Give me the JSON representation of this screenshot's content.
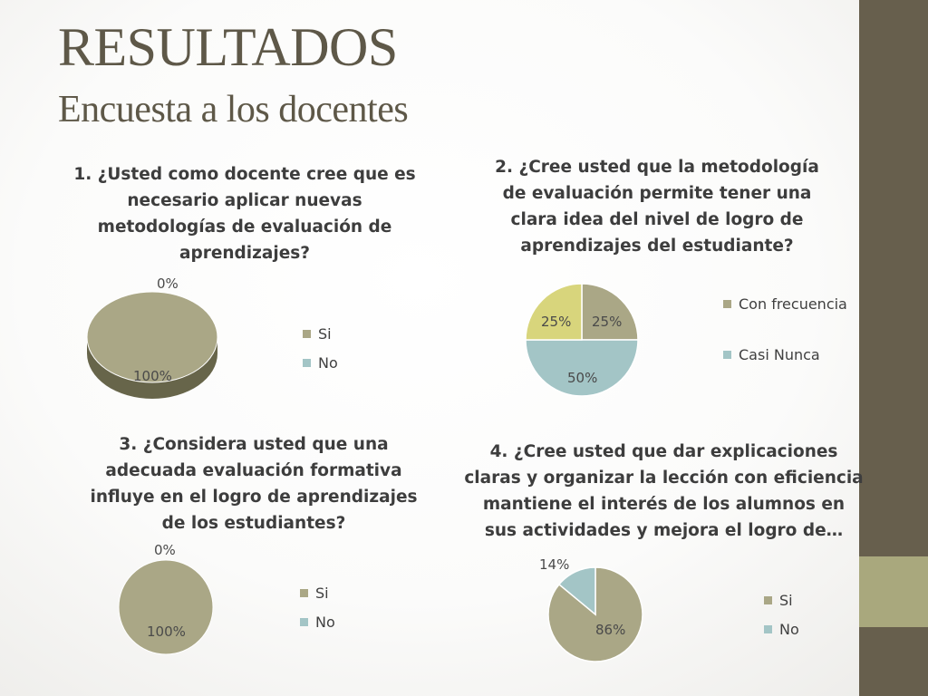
{
  "slide": {
    "title": "RESULTADOS",
    "subtitle": "Encuesta a los docentes"
  },
  "colors": {
    "olive": "#aaa786",
    "olive_dark": "#67654a",
    "teal": "#a3c5c6",
    "yellow": "#d8d57c",
    "sidebar": "#675f4d",
    "sidebar_accent": "#a9a87d"
  },
  "chart_data": [
    {
      "type": "pie",
      "style": "3d",
      "title": "1. ¿Usted como docente cree que es necesario aplicar nuevas metodologías de evaluación de aprendizajes?",
      "title_lines": [
        "1. ¿Usted como docente cree que es",
        "necesario aplicar nuevas",
        "metodologías de evaluación de",
        "aprendizajes?"
      ],
      "categories": [
        "Si",
        "No"
      ],
      "values": [
        100,
        0
      ],
      "data_labels": [
        "100%",
        "0%"
      ],
      "legend": [
        "Si",
        "No"
      ],
      "legend_colors": [
        "#aaa786",
        "#a3c5c6"
      ]
    },
    {
      "type": "pie",
      "title": "2. ¿Cree usted que la metodología de evaluación permite tener una clara idea del nivel de logro de aprendizajes del estudiante?",
      "title_lines": [
        "2. ¿Cree usted que la metodología",
        "de evaluación permite tener una",
        "clara idea del nivel de logro de",
        "aprendizajes del estudiante?"
      ],
      "categories": [
        "",
        "",
        ""
      ],
      "values": [
        25,
        50,
        25
      ],
      "data_labels": [
        "25%",
        "50%",
        "25%"
      ],
      "slice_colors": [
        "#aaa786",
        "#a3c5c6",
        "#d8d57c"
      ],
      "legend": [
        "Con frecuencia",
        "Casi Nunca"
      ],
      "legend_colors": [
        "#aaa786",
        "#a3c5c6"
      ]
    },
    {
      "type": "pie",
      "title": "3. ¿Considera usted que una adecuada evaluación formativa influye en el logro de aprendizajes de los estudiantes?",
      "title_lines": [
        "3. ¿Considera usted que una",
        "adecuada evaluación formativa",
        "influye en el logro de aprendizajes",
        "de los estudiantes?"
      ],
      "categories": [
        "Si",
        "No"
      ],
      "values": [
        100,
        0
      ],
      "data_labels": [
        "100%",
        "0%"
      ],
      "legend": [
        "Si",
        "No"
      ],
      "legend_colors": [
        "#aaa786",
        "#a3c5c6"
      ]
    },
    {
      "type": "pie",
      "title": "4. ¿Cree usted que dar explicaciones claras y organizar la lección con eficiencia mantiene el interés de los alumnos en sus actividades y mejora el logro de…",
      "title_lines": [
        "4. ¿Cree usted que dar explicaciones",
        "claras y organizar la lección con eficiencia",
        "mantiene el interés de los alumnos en",
        "sus actividades y mejora el logro de…"
      ],
      "categories": [
        "Si",
        "No"
      ],
      "values": [
        86,
        14
      ],
      "data_labels": [
        "86%",
        "14%"
      ],
      "legend": [
        "Si",
        "No"
      ],
      "legend_colors": [
        "#aaa786",
        "#a3c5c6"
      ]
    }
  ]
}
